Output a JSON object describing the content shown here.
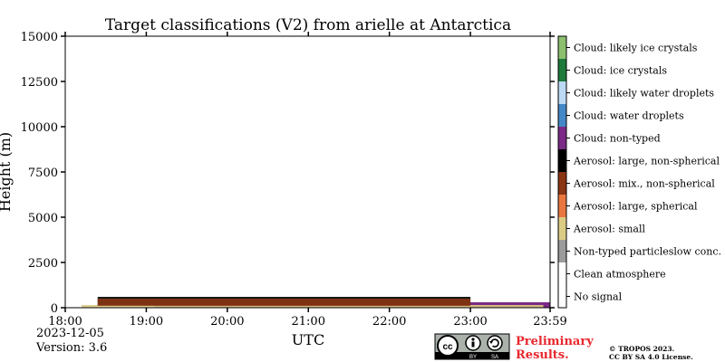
{
  "chart_data": {
    "type": "heatmap",
    "title": "Target classifications (V2) from arielle at Antarctica",
    "xlabel": "UTC",
    "ylabel": "Height (m)",
    "x_ticks": [
      "18:00",
      "19:00",
      "20:00",
      "21:00",
      "22:00",
      "23:00",
      "23:59"
    ],
    "x_tick_hours": [
      18,
      19,
      20,
      21,
      22,
      23,
      23.9833
    ],
    "xlim_hours": [
      18,
      23.9833
    ],
    "y_ticks": [
      "0",
      "2500",
      "5000",
      "7500",
      "10000",
      "12500",
      "15000"
    ],
    "y_tick_values": [
      0,
      2500,
      5000,
      7500,
      10000,
      12500,
      15000
    ],
    "ylim": [
      0,
      15000
    ],
    "legend": [
      {
        "label": "Cloud: likely ice crystals",
        "color": "#8cc06f"
      },
      {
        "label": "Cloud: ice crystals",
        "color": "#1d7a3a"
      },
      {
        "label": "Cloud: likely water droplets",
        "color": "#bcd9f4"
      },
      {
        "label": "Cloud: water droplets",
        "color": "#4488c8"
      },
      {
        "label": "Cloud: non-typed",
        "color": "#7b2a86"
      },
      {
        "label": "Aerosol: large, non-spherical",
        "color": "#000000"
      },
      {
        "label": "Aerosol: mix., non-spherical",
        "color": "#8a3514"
      },
      {
        "label": "Aerosol: large, spherical",
        "color": "#e9763f"
      },
      {
        "label": "Aerosol: small",
        "color": "#dccb84"
      },
      {
        "label": "Non-typed particleslow conc.",
        "color": "#9b9b9b"
      },
      {
        "label": "Clean atmosphere",
        "color": "#ffffff"
      },
      {
        "label": "No signal",
        "color": "#ffffff"
      }
    ],
    "layers": [
      {
        "class": "Cloud: non-typed",
        "color": "#7b2a86",
        "from_hour": 19.1,
        "to_hour": 23.98,
        "base_m": 0,
        "top_m": 300
      },
      {
        "class": "Aerosol: small",
        "color": "#dccb84",
        "from_hour": 18.2,
        "to_hour": 23.9,
        "base_m": 0,
        "top_m": 150
      },
      {
        "class": "Aerosol: large, non-spherical",
        "color": "#000000",
        "from_hour": 18.4,
        "to_hour": 23.0,
        "base_m": 150,
        "top_m": 600
      },
      {
        "class": "Aerosol: mix., non-spherical",
        "color": "#8a3514",
        "from_hour": 18.4,
        "to_hour": 23.0,
        "base_m": 100,
        "top_m": 500
      }
    ],
    "grid": false
  },
  "footer": {
    "date": "2023-12-05",
    "version": "Version: 3.6",
    "license_badge": {
      "cc": "cc",
      "by": "BY",
      "sa": "SA"
    },
    "preliminary_line1": "Preliminary",
    "preliminary_line2": "Results.",
    "copyright_line1": "© TROPOS 2023.",
    "copyright_line2": "CC BY SA 4.0 License."
  }
}
